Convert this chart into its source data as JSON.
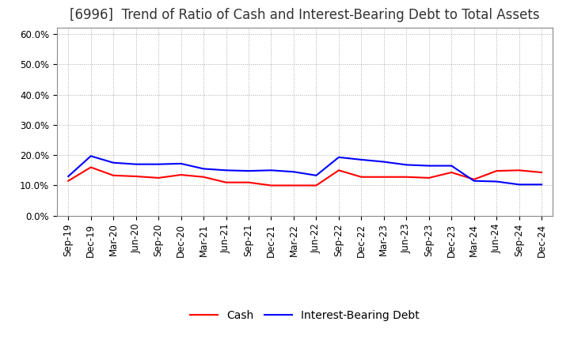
{
  "title": "[6996]  Trend of Ratio of Cash and Interest-Bearing Debt to Total Assets",
  "x_labels": [
    "Sep-19",
    "Dec-19",
    "Mar-20",
    "Jun-20",
    "Sep-20",
    "Dec-20",
    "Mar-21",
    "Jun-21",
    "Sep-21",
    "Dec-21",
    "Mar-22",
    "Jun-22",
    "Sep-22",
    "Dec-22",
    "Mar-23",
    "Jun-23",
    "Sep-23",
    "Dec-23",
    "Mar-24",
    "Jun-24",
    "Sep-24",
    "Dec-24"
  ],
  "cash": [
    0.115,
    0.16,
    0.133,
    0.13,
    0.125,
    0.135,
    0.128,
    0.11,
    0.11,
    0.1,
    0.1,
    0.1,
    0.15,
    0.128,
    0.128,
    0.128,
    0.125,
    0.143,
    0.12,
    0.148,
    0.15,
    0.143
  ],
  "interest_bearing_debt": [
    0.13,
    0.197,
    0.175,
    0.17,
    0.17,
    0.172,
    0.155,
    0.15,
    0.148,
    0.15,
    0.145,
    0.133,
    0.193,
    0.185,
    0.178,
    0.168,
    0.165,
    0.165,
    0.115,
    0.113,
    0.103,
    0.103
  ],
  "cash_color": "#ff0000",
  "debt_color": "#0000ff",
  "cash_label": "Cash",
  "debt_label": "Interest-Bearing Debt",
  "ylim": [
    0.0,
    0.62
  ],
  "yticks": [
    0.0,
    0.1,
    0.2,
    0.3,
    0.4,
    0.5,
    0.6
  ],
  "ytick_labels": [
    "0.0%",
    "10.0%",
    "20.0%",
    "30.0%",
    "40.0%",
    "50.0%",
    "60.0%"
  ],
  "bg_color": "#ffffff",
  "grid_color": "#aaaaaa",
  "title_fontsize": 12,
  "axis_fontsize": 8.5,
  "legend_fontsize": 10
}
